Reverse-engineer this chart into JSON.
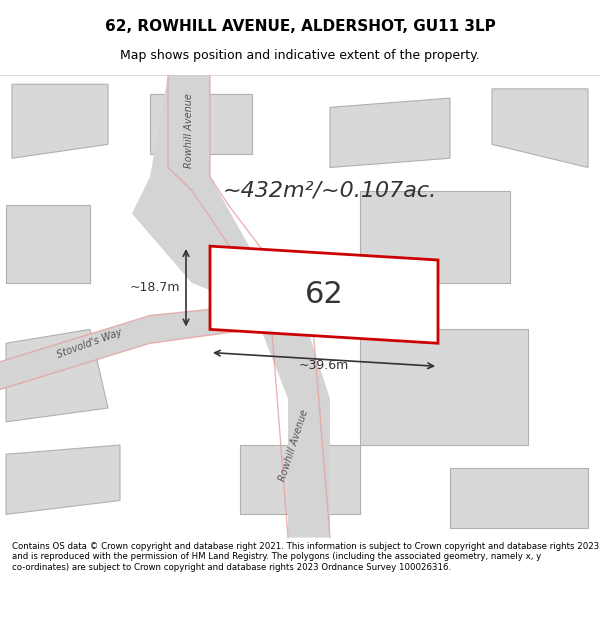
{
  "title_line1": "62, ROWHILL AVENUE, ALDERSHOT, GU11 3LP",
  "title_line2": "Map shows position and indicative extent of the property.",
  "area_text": "~432m²/~0.107ac.",
  "property_number": "62",
  "dim_width": "~39.6m",
  "dim_height": "~18.7m",
  "footer_text": "Contains OS data © Crown copyright and database right 2021. This information is subject to Crown copyright and database rights 2023 and is reproduced with the permission of HM Land Registry. The polygons (including the associated geometry, namely x, y co-ordinates) are subject to Crown copyright and database rights 2023 Ordnance Survey 100026316.",
  "bg_color": "#f5f5f0",
  "map_bg": "#f0eeeb",
  "road_color": "#c8c8c8",
  "property_fill": "#ffffff",
  "property_edge": "#cc0000",
  "building_fill": "#d8d8d8",
  "building_edge": "#c0c0c0",
  "road_line_color": "#e8a0a0",
  "street_label1": "Rowhill Avenue",
  "street_label2": "Rowhill Avenue",
  "street_label3": "Stovold's Way"
}
